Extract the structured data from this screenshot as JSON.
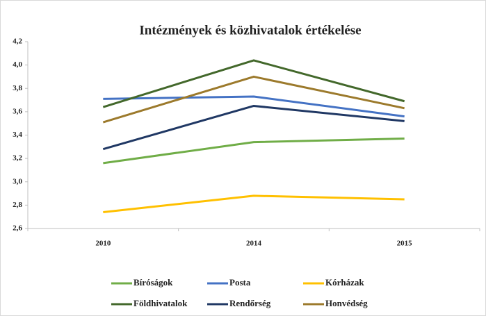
{
  "chart_data": {
    "type": "line",
    "title": "Intézmények és közhivatalok értékelése",
    "categories": [
      "2010",
      "2014",
      "2015"
    ],
    "series": [
      {
        "name": "Bíróságok",
        "color": "#70ad47",
        "values": [
          3.16,
          3.34,
          3.37
        ]
      },
      {
        "name": "Posta",
        "color": "#4472c4",
        "values": [
          3.71,
          3.73,
          3.56
        ]
      },
      {
        "name": "Kórházak",
        "color": "#ffc000",
        "values": [
          2.74,
          2.88,
          2.85
        ]
      },
      {
        "name": "Földhivatalok",
        "color": "#43682b",
        "values": [
          3.64,
          4.04,
          3.69
        ]
      },
      {
        "name": "Rendőrség",
        "color": "#203864",
        "values": [
          3.28,
          3.65,
          3.52
        ]
      },
      {
        "name": "Honvédség",
        "color": "#9c7a2c",
        "values": [
          3.51,
          3.9,
          3.63
        ]
      }
    ],
    "ylim": [
      2.6,
      4.2
    ],
    "yticks": [
      {
        "value": 2.6,
        "label": "2,6"
      },
      {
        "value": 2.8,
        "label": "2,8"
      },
      {
        "value": 3.0,
        "label": "3,0"
      },
      {
        "value": 3.2,
        "label": "3,2"
      },
      {
        "value": 3.4,
        "label": "3,4"
      },
      {
        "value": 3.6,
        "label": "3,6"
      },
      {
        "value": 3.8,
        "label": "3,8"
      },
      {
        "value": 4.0,
        "label": "4,0"
      },
      {
        "value": 4.2,
        "label": "4,2"
      }
    ],
    "grid": false,
    "legend": "bottom"
  }
}
